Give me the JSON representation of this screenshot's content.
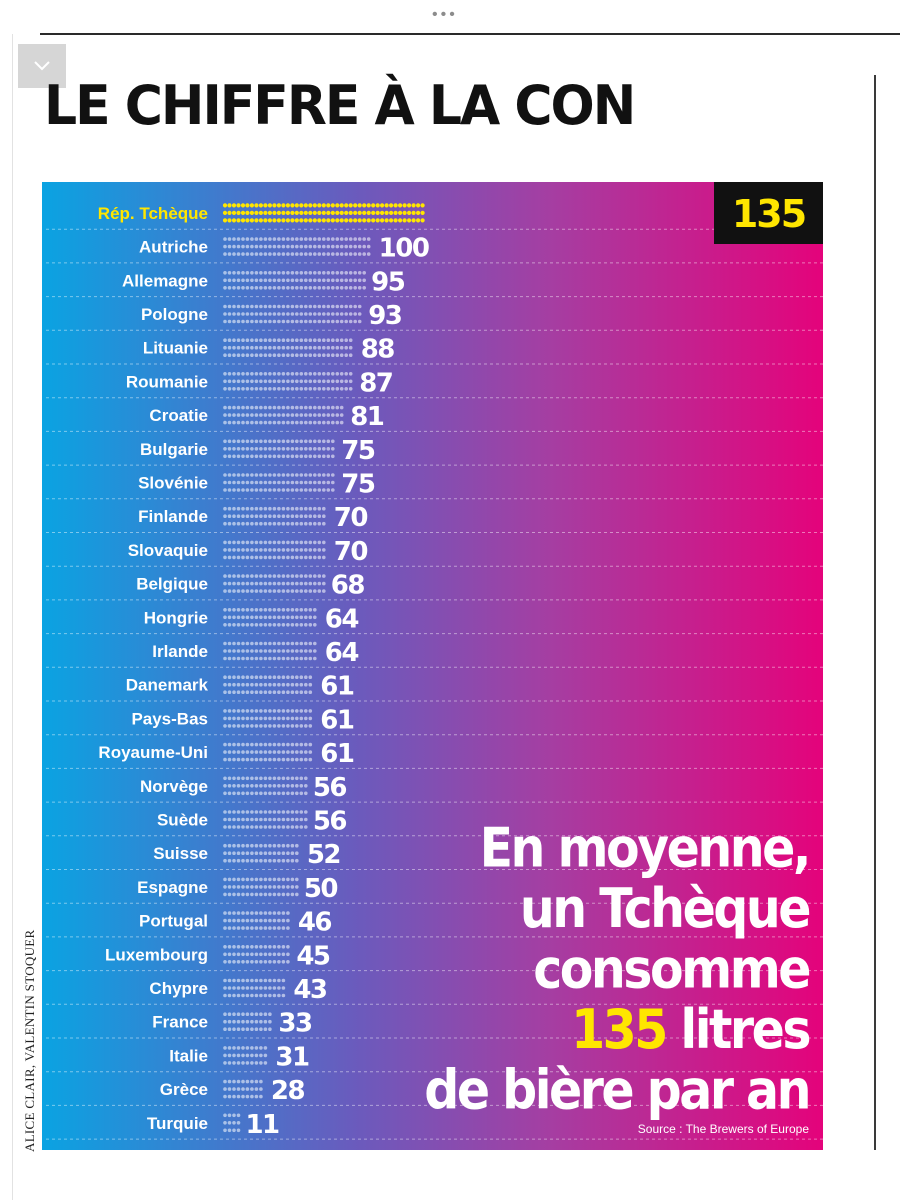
{
  "page": {
    "title": "LE CHIFFRE À LA CON",
    "credit": "ALICE CLAIR, VALENTIN STOQUER",
    "menu_label": "•••"
  },
  "statement": {
    "line1": "En moyenne,",
    "line2": "un Tchèque",
    "line3": "consomme",
    "line4_number": "135",
    "line4_rest": " litres",
    "line5": "de bière par an"
  },
  "source": "Source : The Brewers of Europe",
  "colors": {
    "gradient_left": "#0aa3e2",
    "gradient_mid": "#a53ea2",
    "gradient_right": "#e4037b",
    "highlight": "#ffe600",
    "highlight_box": "#111111"
  },
  "chart_data": {
    "type": "bar",
    "style": "dot-rows",
    "highlight_category": "Rép. Tchèque",
    "categories": [
      "Rép. Tchèque",
      "Autriche",
      "Allemagne",
      "Pologne",
      "Lituanie",
      "Roumanie",
      "Croatie",
      "Bulgarie",
      "Slovénie",
      "Finlande",
      "Slovaquie",
      "Belgique",
      "Hongrie",
      "Irlande",
      "Danemark",
      "Pays-Bas",
      "Royaume-Uni",
      "Norvège",
      "Suède",
      "Suisse",
      "Espagne",
      "Portugal",
      "Luxembourg",
      "Chypre",
      "France",
      "Italie",
      "Grèce",
      "Turquie"
    ],
    "values": [
      135,
      100,
      95,
      93,
      88,
      87,
      81,
      75,
      75,
      70,
      70,
      68,
      64,
      64,
      61,
      61,
      61,
      56,
      56,
      52,
      50,
      46,
      45,
      43,
      33,
      31,
      28,
      11
    ],
    "xlim": [
      0,
      135
    ]
  }
}
